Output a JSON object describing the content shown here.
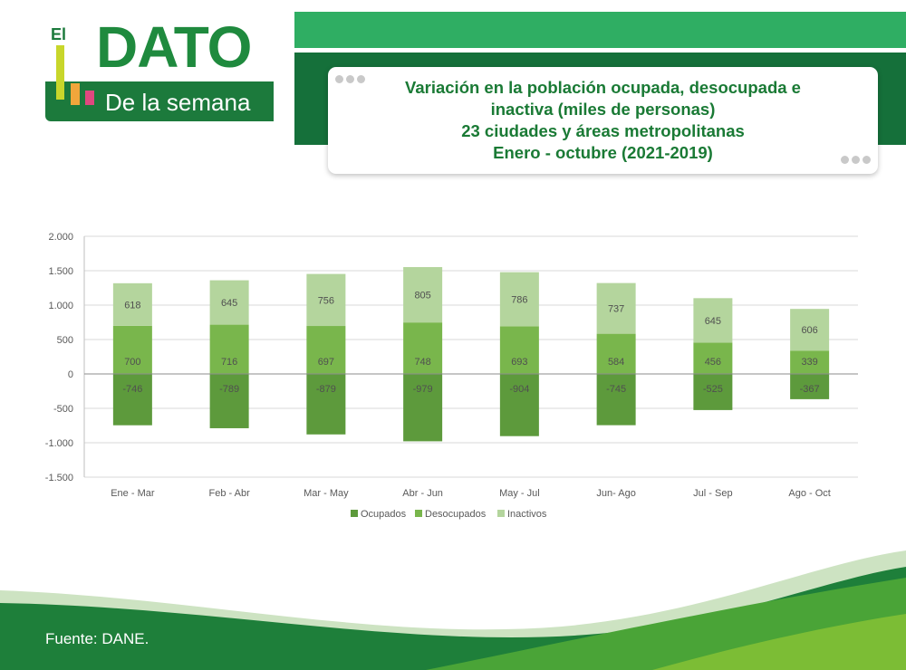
{
  "header": {
    "logo_el": "El",
    "logo_word": "DATO",
    "logo_sub": "De la semana"
  },
  "title": {
    "line1": "Variación en la población ocupada, desocupada e",
    "line2": "inactiva (miles de personas)",
    "line3": "23 ciudades y áreas metropolitanas",
    "line4": "Enero - octubre (2021-2019)"
  },
  "source": "Fuente: DANE.",
  "colors": {
    "ocupados": "#5d9a3c",
    "desocupados": "#79b64c",
    "inactivos": "#b4d59d",
    "brand_green": "#1f8a3e"
  },
  "chart_data": {
    "type": "bar",
    "stacked": true,
    "categories": [
      "Ene - Mar",
      "Feb - Abr",
      "Mar - May",
      "Abr - Jun",
      "May - Jul",
      "Jun- Ago",
      "Jul - Sep",
      "Ago - Oct"
    ],
    "series": [
      {
        "name": "Ocupados",
        "values": [
          -746,
          -789,
          -879,
          -979,
          -904,
          -745,
          -525,
          -367
        ]
      },
      {
        "name": "Desocupados",
        "values": [
          700,
          716,
          697,
          748,
          693,
          584,
          456,
          339
        ]
      },
      {
        "name": "Inactivos",
        "values": [
          618,
          645,
          756,
          805,
          786,
          737,
          645,
          606
        ]
      }
    ],
    "ylim": [
      -1500,
      2000
    ],
    "yticks": [
      2000,
      1500,
      1000,
      500,
      0,
      -500,
      -1000,
      -1500
    ],
    "ytick_labels": [
      "2.000",
      "1.500",
      "1.000",
      "500",
      "0",
      "-500",
      "-1.000",
      "-1.500"
    ],
    "grid": true,
    "legend": "bottom"
  }
}
